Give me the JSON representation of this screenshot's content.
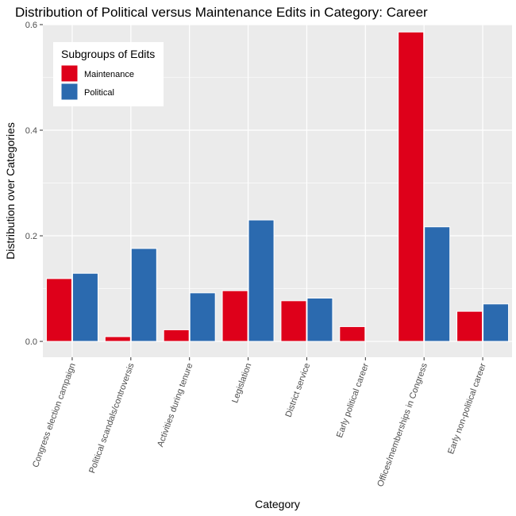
{
  "chart_data": {
    "type": "bar",
    "title": "Distribution of Political versus Maintenance Edits in Category: Career",
    "xlabel": "Category",
    "ylabel": "Distribution over Categories",
    "ylim": [
      -0.03,
      0.6
    ],
    "yticks": [
      0.0,
      0.2,
      0.4,
      0.6
    ],
    "ytick_labels": [
      "0.0",
      "0.2",
      "0.4",
      "0.6"
    ],
    "grid": true,
    "categories": [
      "Congress election campaign",
      "Political scandals/controversis",
      "Activities during tenure",
      "Legislation",
      "District service",
      "Early political career",
      "Offices/memberships in Congress",
      "Early non-political career"
    ],
    "series": [
      {
        "name": "Maintenance",
        "color": "#de001a",
        "values": [
          0.119,
          0.009,
          0.022,
          0.096,
          0.077,
          0.028,
          0.586,
          0.057
        ]
      },
      {
        "name": "Political",
        "color": "#2b6aaf",
        "values": [
          0.129,
          0.176,
          0.092,
          0.23,
          0.082,
          0.0,
          0.217,
          0.071
        ]
      }
    ],
    "legend": {
      "title": "Subgroups of Edits",
      "position": "top-left"
    }
  }
}
